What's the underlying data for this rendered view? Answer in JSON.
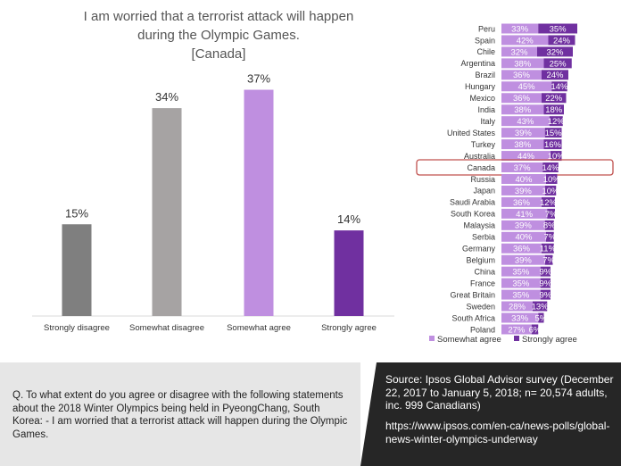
{
  "title": {
    "line1": "I am worried that a terrorist attack will happen",
    "line2": "during the Olympic Games.",
    "line3": "[Canada]"
  },
  "colors": {
    "strongly_disagree": "#7f7f7f",
    "somewhat_disagree": "#a6a3a3",
    "somewhat_agree": "#bf8fe0",
    "strongly_agree": "#7030a0",
    "highlight": "#c0504d"
  },
  "chart_data": [
    {
      "type": "bar",
      "categories": [
        "Strongly disagree",
        "Somewhat disagree",
        "Somewhat agree",
        "Strongly agree"
      ],
      "values": [
        15,
        34,
        37,
        14
      ],
      "value_labels": [
        "15%",
        "34%",
        "37%",
        "14%"
      ],
      "ylim": [
        0,
        40
      ]
    },
    {
      "type": "bar",
      "orientation": "horizontal",
      "stacked": true,
      "categories": [
        "Peru",
        "Spain",
        "Chile",
        "Argentina",
        "Brazil",
        "Hungary",
        "Mexico",
        "India",
        "Italy",
        "United States",
        "Turkey",
        "Australia",
        "Canada",
        "Russia",
        "Japan",
        "Saudi Arabia",
        "South Korea",
        "Malaysia",
        "Serbia",
        "Germany",
        "Belgium",
        "China",
        "France",
        "Great Britain",
        "Sweden",
        "South Africa",
        "Poland"
      ],
      "series": [
        {
          "name": "Somewhat agree",
          "values": [
            33,
            42,
            32,
            38,
            36,
            45,
            36,
            38,
            43,
            39,
            38,
            44,
            37,
            40,
            39,
            36,
            41,
            39,
            40,
            36,
            39,
            35,
            35,
            35,
            28,
            33,
            27
          ]
        },
        {
          "name": "Strongly agree",
          "values": [
            35,
            24,
            32,
            25,
            24,
            14,
            22,
            18,
            12,
            15,
            16,
            10,
            14,
            10,
            10,
            12,
            7,
            8,
            7,
            11,
            7,
            9,
            9,
            9,
            13,
            5,
            6
          ]
        }
      ],
      "highlight": "Canada",
      "legend": "bottom"
    }
  ],
  "question": "Q.  To what extent do you agree or disagree with the following statements about the 2018 Winter Olympics being held in PyeongChang, South Korea: - I am worried that a terrorist attack will happen during the Olympic Games.",
  "source": "Source: Ipsos Global Advisor survey (December 22, 2017 to January 5, 2018; n= 20,574 adults, inc. 999 Canadians)",
  "source_url": "https://www.ipsos.com/en-ca/news-polls/global-news-winter-olympics-underway"
}
